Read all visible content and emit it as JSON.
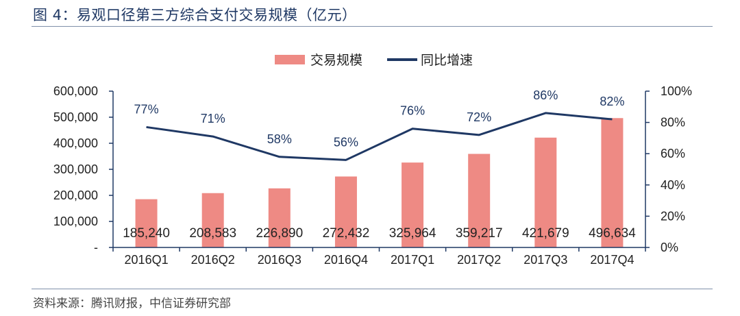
{
  "header": {
    "title": "图 4：易观口径第三方综合支付交易规模（亿元）"
  },
  "footer": {
    "source": "资料来源：腾讯财报，中信证券研究部"
  },
  "colors": {
    "bar": "#ee8a84",
    "line": "#1f3864",
    "axis": "#1f3864"
  },
  "chart_data": {
    "type": "bar",
    "title": "",
    "categories": [
      "2016Q1",
      "2016Q2",
      "2016Q3",
      "2016Q4",
      "2017Q1",
      "2017Q2",
      "2017Q3",
      "2017Q4"
    ],
    "series": [
      {
        "name": "交易规模",
        "type": "bar",
        "axis": "left",
        "values": [
          185240,
          208583,
          226890,
          272432,
          325964,
          359217,
          421679,
          496634
        ],
        "labels": [
          "185,240",
          "208,583",
          "226,890",
          "272,432",
          "325,964",
          "359,217",
          "421,679",
          "496,634"
        ]
      },
      {
        "name": "同比增速",
        "type": "line",
        "axis": "right",
        "values": [
          77,
          71,
          58,
          56,
          76,
          72,
          86,
          82
        ],
        "labels": [
          "77%",
          "71%",
          "58%",
          "56%",
          "76%",
          "72%",
          "86%",
          "82%"
        ]
      }
    ],
    "y_left": {
      "range": [
        0,
        600000
      ],
      "ticks": [
        0,
        100000,
        200000,
        300000,
        400000,
        500000,
        600000
      ],
      "tick_labels": [
        "-",
        "100,000",
        "200,000",
        "300,000",
        "400,000",
        "500,000",
        "600,000"
      ]
    },
    "y_right": {
      "range": [
        0,
        100
      ],
      "ticks": [
        0,
        20,
        40,
        60,
        80,
        100
      ],
      "tick_labels": [
        "0%",
        "20%",
        "40%",
        "60%",
        "80%",
        "100%"
      ]
    },
    "legend": {
      "position": "top-center"
    },
    "grid": false
  }
}
